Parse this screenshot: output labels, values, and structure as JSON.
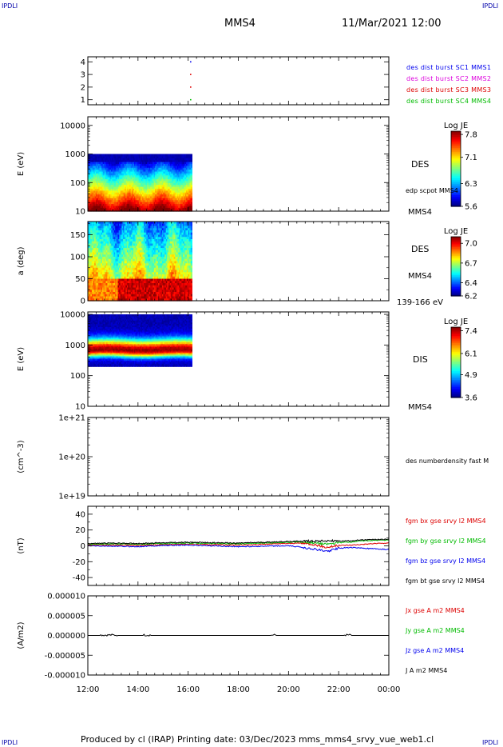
{
  "header": {
    "corner_tl": "IPDLI",
    "corner_tr": "IPDLI",
    "corner_bl": "IPDLI",
    "corner_br": "IPDLI",
    "spacecraft": "MMS4",
    "datetime": "11/Mar/2021 12:00"
  },
  "footer": {
    "text": "Produced by cl (IRAP)   Printing date: 03/Dec/2023   mms_mms4_srvy_vue_web1.cl"
  },
  "colors": {
    "blue": "#0000ee",
    "magenta": "#dd00dd",
    "red": "#dd0000",
    "green": "#00bb00",
    "black": "#000000"
  },
  "chart_data": [
    {
      "type": "scatter",
      "panel": "burst",
      "yticks": [
        "1",
        "2",
        "3",
        "4"
      ],
      "ylim": [
        0.6,
        4.4
      ],
      "labels": [
        {
          "text": "des dist burst SC1 MMS1",
          "color": "blue"
        },
        {
          "text": "des dist burst SC2 MMS2",
          "color": "magenta"
        },
        {
          "text": "des dist burst SC3 MMS3",
          "color": "red"
        },
        {
          "text": "des dist burst SC4 MMS4",
          "color": "green"
        }
      ],
      "points": [
        {
          "x": 16.1,
          "y": 4,
          "color": "blue"
        },
        {
          "x": 16.1,
          "y": 3,
          "color": "red"
        },
        {
          "x": 16.1,
          "y": 2,
          "color": "red"
        },
        {
          "x": 16.1,
          "y": 1,
          "color": "green"
        }
      ]
    },
    {
      "type": "heatmap",
      "panel": "des_energy",
      "ylabel": "E (eV)",
      "yscale": "log",
      "ylim": [
        10,
        20000
      ],
      "yticks": [
        "10",
        "100",
        "1000",
        "10000"
      ],
      "data_x_range": [
        12.0,
        16.15
      ],
      "data_y_range": [
        10,
        1000
      ],
      "colorbar": {
        "title": "Log JE",
        "ticks": [
          "7.8",
          "7.1",
          "6.3",
          "5.6"
        ],
        "range": [
          5.6,
          7.9
        ]
      },
      "side_labels": [
        "DES",
        "edp scpot MMS4",
        "MMS4"
      ]
    },
    {
      "type": "heatmap",
      "panel": "des_pitch",
      "ylabel": "a (deg)",
      "ylim": [
        0,
        180
      ],
      "yticks": [
        "0",
        "50",
        "100",
        "150"
      ],
      "data_x_range": [
        12.0,
        16.15
      ],
      "colorbar": {
        "title": "Log JE",
        "ticks": [
          "7.0",
          "6.7",
          "6.4",
          "6.2"
        ],
        "range": [
          6.2,
          7.1
        ]
      },
      "side_labels": [
        "DES",
        "MMS4",
        "139-166 eV"
      ]
    },
    {
      "type": "heatmap",
      "panel": "dis_energy",
      "ylabel": "E (eV)",
      "yscale": "log",
      "ylim": [
        10,
        12000
      ],
      "yticks": [
        "10",
        "100",
        "1000",
        "10000"
      ],
      "data_x_range": [
        12.0,
        16.15
      ],
      "data_y_range": [
        200,
        10000
      ],
      "colorbar": {
        "title": "Log JE",
        "ticks": [
          "7.4",
          "6.1",
          "4.9",
          "3.6"
        ],
        "range": [
          3.6,
          7.6
        ]
      },
      "side_labels": [
        "DIS",
        "MMS4"
      ]
    },
    {
      "type": "line",
      "panel": "density",
      "ylabel": "(cm^-3)",
      "yscale": "log",
      "ylim": [
        1e+19,
        1e+21
      ],
      "yticks": [
        "1e+19",
        "1e+20",
        "1e+21"
      ],
      "labels": [
        {
          "text": "des numberdensity fast M",
          "color": "black"
        }
      ]
    },
    {
      "type": "line",
      "panel": "fgm",
      "ylabel": "(nT)",
      "ylim": [
        -50,
        50
      ],
      "yticks": [
        "-40",
        "-20",
        "0",
        "20",
        "40"
      ],
      "labels": [
        {
          "text": "fgm bx gse srvy l2 MMS4",
          "color": "red"
        },
        {
          "text": "fgm by gse srvy l2 MMS4",
          "color": "green"
        },
        {
          "text": "fgm bz gse srvy l2 MMS4",
          "color": "blue"
        },
        {
          "text": "fgm bt gse srvy l2 MMS4",
          "color": "black"
        }
      ],
      "series": [
        {
          "name": "fgm bx gse srvy l2 MMS4",
          "color": "red",
          "x": [
            12.0,
            13.0,
            14.0,
            15.0,
            16.0,
            17.0,
            18.0,
            19.0,
            20.0,
            20.5,
            21.0,
            21.5,
            22.0,
            22.5,
            23.0,
            23.5,
            24.0
          ],
          "y": [
            1.5,
            1.0,
            0.5,
            1.5,
            2.0,
            1.5,
            1.0,
            2.0,
            3.0,
            3.5,
            2.0,
            -2.0,
            0.5,
            1.0,
            2.0,
            3.0,
            3.5
          ]
        },
        {
          "name": "fgm by gse srvy l2 MMS4",
          "color": "green",
          "x": [
            12.0,
            13.0,
            14.0,
            15.0,
            16.0,
            17.0,
            18.0,
            19.0,
            20.0,
            20.5,
            21.0,
            21.5,
            22.0,
            22.5,
            23.0,
            23.5,
            24.0
          ],
          "y": [
            2.0,
            2.5,
            2.0,
            3.0,
            3.5,
            3.0,
            2.5,
            3.5,
            4.5,
            5.0,
            4.0,
            2.0,
            4.0,
            5.0,
            6.5,
            7.0,
            7.5
          ]
        },
        {
          "name": "fgm bz gse srvy l2 MMS4",
          "color": "blue",
          "x": [
            12.0,
            13.0,
            14.0,
            15.0,
            16.0,
            17.0,
            18.0,
            19.0,
            20.0,
            20.5,
            21.0,
            21.5,
            22.0,
            22.5,
            23.0,
            23.5,
            24.0
          ],
          "y": [
            0.0,
            -0.5,
            -1.0,
            0.5,
            1.0,
            0.0,
            -1.0,
            -0.5,
            0.0,
            -1.5,
            -4.0,
            -7.0,
            -3.0,
            -2.0,
            -3.0,
            -4.0,
            -4.5
          ]
        },
        {
          "name": "fgm bt gse srvy l2 MMS4",
          "color": "black",
          "x": [
            12.0,
            13.0,
            14.0,
            15.0,
            16.0,
            17.0,
            18.0,
            19.0,
            20.0,
            20.5,
            21.0,
            21.5,
            22.0,
            22.5,
            23.0,
            23.5,
            24.0
          ],
          "y": [
            3.0,
            3.5,
            3.0,
            4.0,
            4.5,
            4.0,
            3.5,
            4.5,
            5.5,
            6.0,
            6.0,
            6.5,
            6.0,
            6.5,
            7.5,
            8.0,
            8.5
          ]
        }
      ]
    },
    {
      "type": "line",
      "panel": "current",
      "ylabel": "(A/m2)",
      "ylim": [
        -1e-05,
        1e-05
      ],
      "yticks": [
        "-0.000010",
        "-0.000005",
        "0.000000",
        "0.000005",
        "0.000010"
      ],
      "labels": [
        {
          "text": "Jx gse A m2 MMS4",
          "color": "red"
        },
        {
          "text": "Jy gse A m2 MMS4",
          "color": "green"
        },
        {
          "text": "Jz gse A m2 MMS4",
          "color": "blue"
        },
        {
          "text": "J A m2 MMS4",
          "color": "black"
        }
      ],
      "series": [
        {
          "name": "J A m2 MMS4",
          "color": "black",
          "x": [
            12.0,
            24.0
          ],
          "y": [
            0.0,
            0.0
          ]
        }
      ]
    }
  ],
  "xaxis": {
    "xlim": [
      12.0,
      24.0
    ],
    "tick_values": [
      12,
      14,
      16,
      18,
      20,
      22,
      24
    ],
    "tick_labels": [
      "12:00",
      "14:00",
      "16:00",
      "18:00",
      "20:00",
      "22:00",
      "00:00"
    ]
  }
}
